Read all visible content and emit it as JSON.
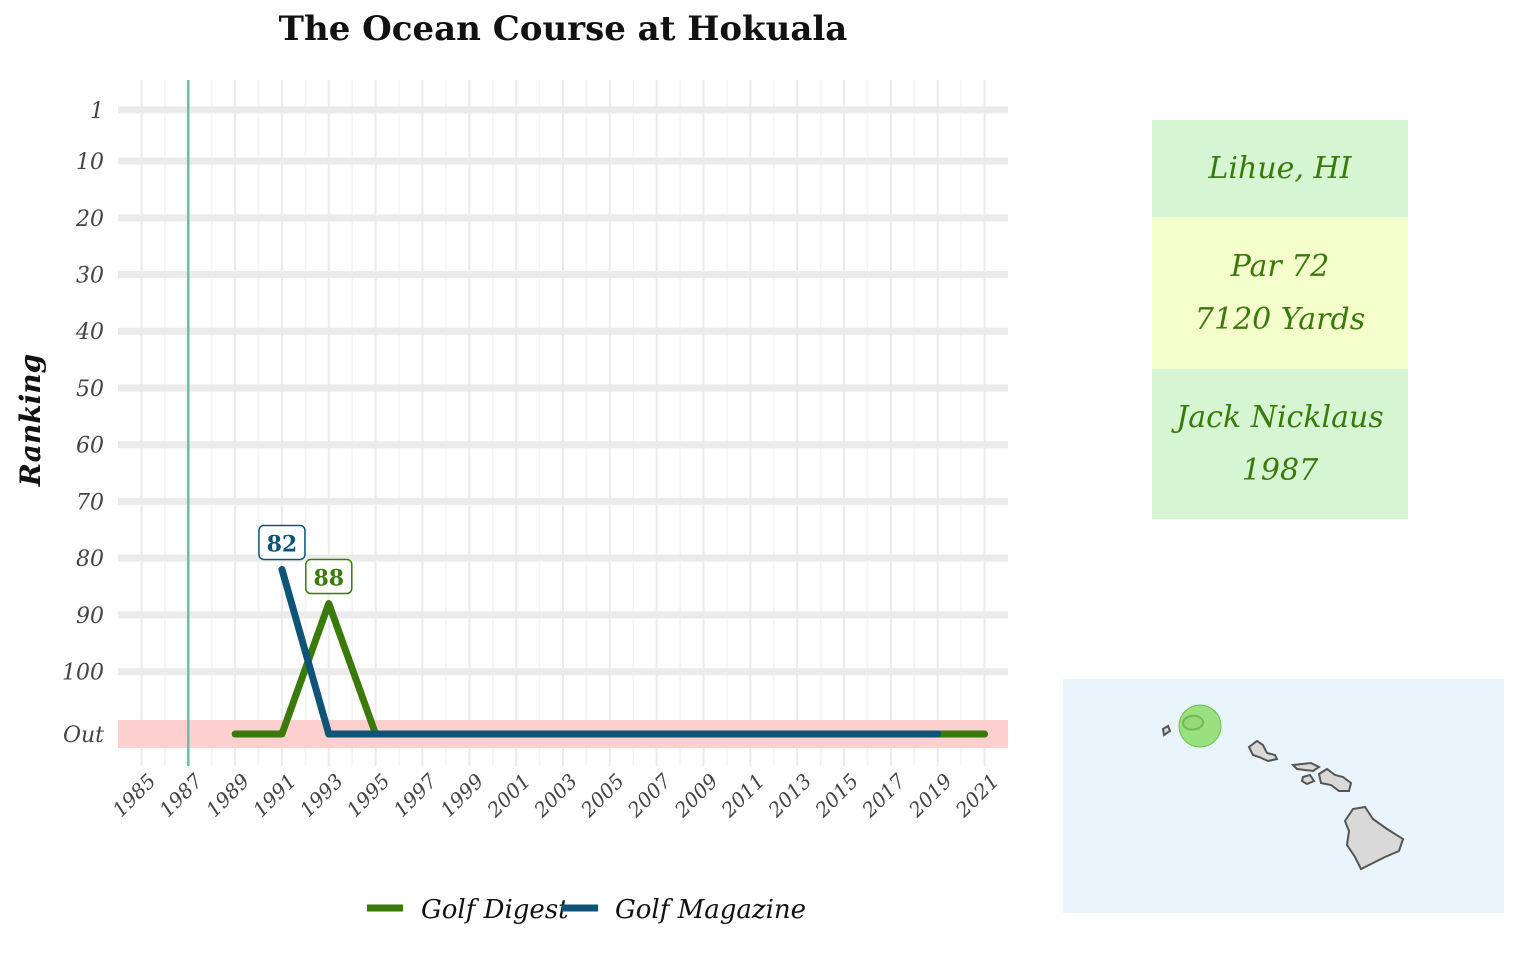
{
  "chart_data": {
    "type": "line",
    "title": "The Ocean Course at Hokuala",
    "xlabel": "",
    "ylabel": "Ranking",
    "x_ticks": [
      1985,
      1987,
      1989,
      1991,
      1993,
      1995,
      1997,
      1999,
      2001,
      2003,
      2005,
      2007,
      2009,
      2011,
      2013,
      2015,
      2017,
      2019,
      2021
    ],
    "xlim": [
      1984,
      2022
    ],
    "y_ticks": [
      {
        "value": 1,
        "label": "1"
      },
      {
        "value": 10,
        "label": "10"
      },
      {
        "value": 20,
        "label": "20"
      },
      {
        "value": 30,
        "label": "30"
      },
      {
        "value": 40,
        "label": "40"
      },
      {
        "value": 50,
        "label": "50"
      },
      {
        "value": 60,
        "label": "60"
      },
      {
        "value": 70,
        "label": "70"
      },
      {
        "value": 80,
        "label": "80"
      },
      {
        "value": 90,
        "label": "90"
      },
      {
        "value": 100,
        "label": "100"
      },
      {
        "value": 111,
        "label": "Out"
      }
    ],
    "ylim": [
      1,
      111
    ],
    "y_reversed": true,
    "out_value": 111,
    "out_band_color": "#fdcfcf",
    "opened_year": 1987,
    "opened_line_color": "#66c2a5",
    "grid": true,
    "legend_position": "bottom",
    "series": [
      {
        "name": "Golf Digest",
        "color": "#3a7a0a",
        "x": [
          1989,
          1991,
          1993,
          1995,
          1997,
          1999,
          2001,
          2003,
          2005,
          2007,
          2009,
          2011,
          2013,
          2015,
          2017,
          2019,
          2021
        ],
        "y": [
          111,
          111,
          88,
          111,
          111,
          111,
          111,
          111,
          111,
          111,
          111,
          111,
          111,
          111,
          111,
          111,
          111
        ],
        "labels": [
          {
            "x": 1993,
            "y": 88,
            "text": "88"
          }
        ]
      },
      {
        "name": "Golf Magazine",
        "color": "#0f5478",
        "x": [
          1991,
          1993,
          1995,
          1997,
          1999,
          2001,
          2003,
          2005,
          2007,
          2009,
          2011,
          2013,
          2015,
          2017,
          2019
        ],
        "y": [
          82,
          111,
          111,
          111,
          111,
          111,
          111,
          111,
          111,
          111,
          111,
          111,
          111,
          111,
          111
        ],
        "labels": [
          {
            "x": 1991,
            "y": 82,
            "text": "82"
          }
        ]
      }
    ]
  },
  "info": {
    "location": "Lihue, HI",
    "par": "Par 72",
    "yards": "7120 Yards",
    "designer": "Jack Nicklaus",
    "year": "1987"
  },
  "map": {
    "background_color": "#eaf4fd",
    "island_fill": "#d9d9d9",
    "highlight_color": "#7ed957"
  }
}
